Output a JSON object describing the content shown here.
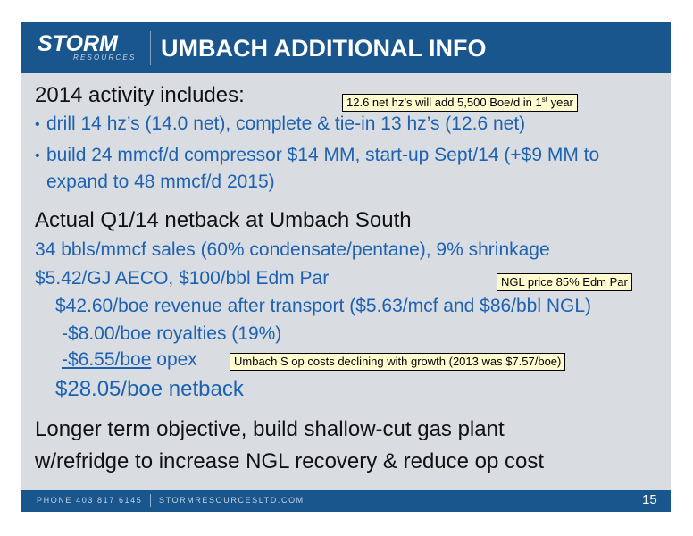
{
  "header": {
    "logo_text": "STORM",
    "logo_subtext": "RESOURCES",
    "title": "UMBACH ADDITIONAL INFO"
  },
  "activity": {
    "heading": "2014 activity includes:",
    "bullet_1": "drill 14 hz’s (14.0 net), complete & tie-in 13 hz’s (12.6 net)",
    "bullet_2_line_1": "build 24 mmcf/d compressor $14 MM, start-up Sept/14 (+$9 MM to",
    "bullet_2_line_2": "expand to 48 mmcf/d 2015)",
    "bullet_symbol": "•"
  },
  "netback": {
    "heading": "Actual Q1/14 netback at Umbach South",
    "sales_line": "34 bbls/mmcf sales (60% condensate/pentane), 9% shrinkage",
    "price_line": "$5.42/GJ AECO, $100/bbl Edm Par",
    "revenue_line": "$42.60/boe revenue after transport ($5.63/mcf and $86/bbl NGL)",
    "royalties_line": "-$8.00/boe royalties (19%)",
    "opex_value": "-$6.55/boe",
    "opex_label": "opex",
    "netback_line": "$28.05/boe netback"
  },
  "objective": {
    "line_1": "Longer term objective, build shallow-cut gas plant",
    "line_2": "w/refridge to increase NGL recovery & reduce op cost"
  },
  "callouts": {
    "net_hz_prefix": "12.6 net hz’s will add 5,500 Boe/d in 1",
    "net_hz_sup": "st",
    "net_hz_suffix": " year",
    "ngl_price": "NGL price 85% Edm Par",
    "op_costs": "Umbach S op costs declining with growth (2013 was $7.57/boe)"
  },
  "footer": {
    "phone": "PHONE 403 817 6145",
    "website": "STORMRESOURCESLTD.COM",
    "page_number": "15"
  },
  "colors": {
    "header_bg": "#1a568e",
    "slide_bg": "#d9dde2",
    "body_blue": "#1d62b1",
    "callout_bg": "#fffdd0"
  }
}
